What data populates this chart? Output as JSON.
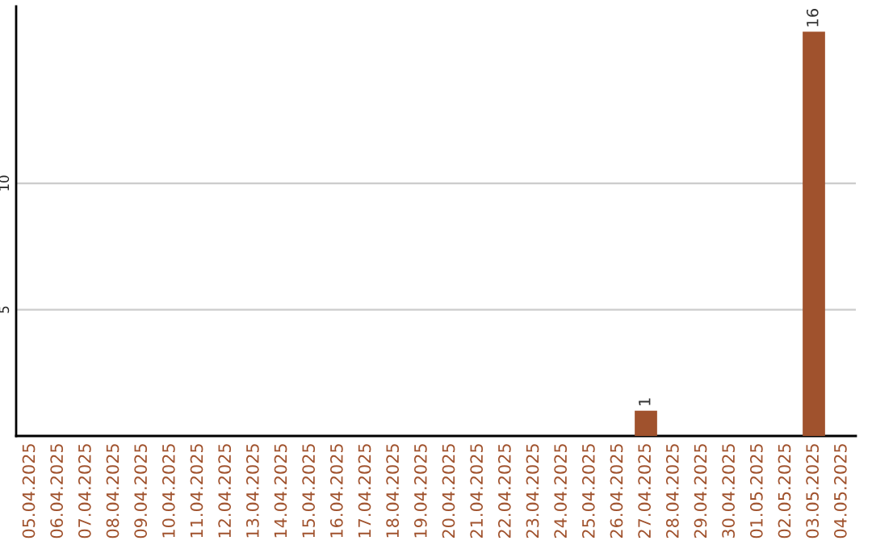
{
  "chart_data": {
    "type": "bar",
    "categories": [
      "05.04.2025",
      "06.04.2025",
      "07.04.2025",
      "08.04.2025",
      "09.04.2025",
      "10.04.2025",
      "11.04.2025",
      "12.04.2025",
      "13.04.2025",
      "14.04.2025",
      "15.04.2025",
      "16.04.2025",
      "17.04.2025",
      "18.04.2025",
      "19.04.2025",
      "20.04.2025",
      "21.04.2025",
      "22.04.2025",
      "23.04.2025",
      "24.04.2025",
      "25.04.2025",
      "26.04.2025",
      "27.04.2025",
      "28.04.2025",
      "29.04.2025",
      "30.04.2025",
      "01.05.2025",
      "02.05.2025",
      "03.05.2025",
      "04.05.2025"
    ],
    "values": [
      0,
      0,
      0,
      0,
      0,
      0,
      0,
      0,
      0,
      0,
      0,
      0,
      0,
      0,
      0,
      0,
      0,
      0,
      0,
      0,
      0,
      0,
      1,
      0,
      0,
      0,
      0,
      0,
      16,
      0
    ],
    "value_labels": [
      null,
      null,
      null,
      null,
      null,
      null,
      null,
      null,
      null,
      null,
      null,
      null,
      null,
      null,
      null,
      null,
      null,
      null,
      null,
      null,
      null,
      null,
      "1",
      null,
      null,
      null,
      null,
      null,
      "16",
      null
    ],
    "color": "#a0522d",
    "ylim": [
      0,
      17
    ],
    "yticks": [
      5,
      10
    ],
    "grid": "y",
    "legend": false
  }
}
